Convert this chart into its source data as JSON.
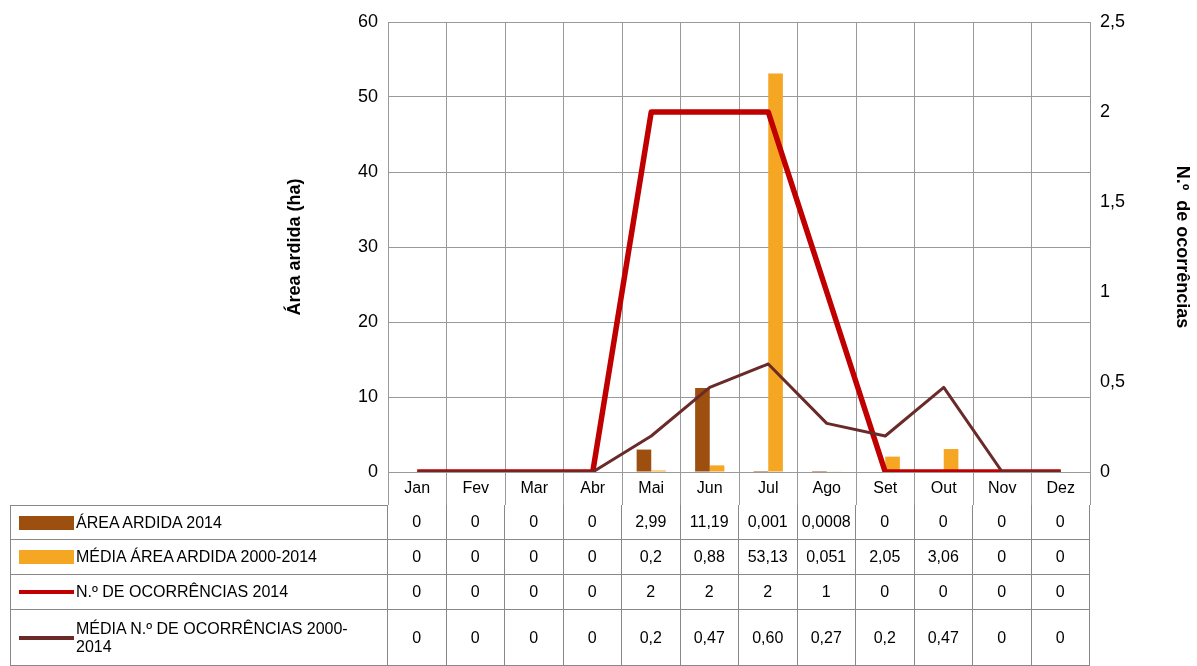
{
  "chart_data": {
    "type": "bar",
    "categories": [
      "Jan",
      "Fev",
      "Mar",
      "Abr",
      "Mai",
      "Jun",
      "Jul",
      "Ago",
      "Set",
      "Out",
      "Nov",
      "Dez"
    ],
    "ylabel": "Área ardida (ha)",
    "y2label": "N.º  de ocorrências",
    "ylim": [
      0,
      60
    ],
    "yticks": [
      0,
      10,
      20,
      30,
      40,
      50,
      60
    ],
    "y2lim": [
      0,
      2.5
    ],
    "y2ticks": [
      {
        "value": 0,
        "label": "0"
      },
      {
        "value": 0.5,
        "label": "0,5"
      },
      {
        "value": 1,
        "label": "1"
      },
      {
        "value": 1.5,
        "label": "1,5"
      },
      {
        "value": 2,
        "label": "2"
      },
      {
        "value": 2.5,
        "label": "2,5"
      }
    ],
    "grid": true,
    "legend": "bottom left",
    "series": [
      {
        "name": "ÁREA ARDIDA 2014",
        "color": "#9c4f0f",
        "values": [
          0,
          0,
          0,
          0,
          2.99,
          11.19,
          0.001,
          0.0008,
          0,
          0,
          0,
          0
        ],
        "value_labels": [
          "0",
          "0",
          "0",
          "0",
          "2,99",
          "11,19",
          "0,001",
          "0,0008",
          "0",
          "0",
          "0",
          "0"
        ]
      },
      {
        "name": "MÉDIA ÁREA ARDIDA 2000-2014",
        "color": "#f5a623",
        "values": [
          0,
          0,
          0,
          0,
          0.2,
          0.88,
          53.13,
          0.051,
          2.05,
          3.06,
          0,
          0
        ],
        "value_labels": [
          "0",
          "0",
          "0",
          "0",
          "0,2",
          "0,88",
          "53,13",
          "0,051",
          "2,05",
          "3,06",
          "0",
          "0"
        ]
      },
      {
        "name": "N.º DE OCORRÊNCIAS 2014",
        "type": "line",
        "axis": "y2",
        "color": "#c00000",
        "values": [
          0,
          0,
          0,
          0,
          2,
          2,
          2,
          1,
          0,
          0,
          0,
          0
        ],
        "value_labels": [
          "0",
          "0",
          "0",
          "0",
          "2",
          "2",
          "2",
          "1",
          "0",
          "0",
          "0",
          "0"
        ]
      },
      {
        "name": "MÉDIA N.º DE OCORRÊNCIAS 2000-2014",
        "type": "line",
        "axis": "y2",
        "color": "#6b2a2a",
        "values": [
          0,
          0,
          0,
          0,
          0.2,
          0.47,
          0.6,
          0.27,
          0.2,
          0.47,
          0,
          0
        ],
        "value_labels": [
          "0",
          "0",
          "0",
          "0",
          "0,2",
          "0,47",
          "0,60",
          "0,27",
          "0,2",
          "0,47",
          "0",
          "0"
        ]
      }
    ]
  }
}
